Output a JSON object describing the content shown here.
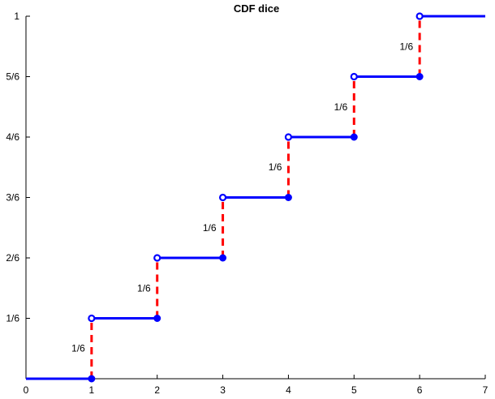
{
  "chart_data": {
    "type": "line",
    "title": "CDF dice",
    "xlabel": "",
    "ylabel": "",
    "xlim": [
      0,
      7
    ],
    "ylim": [
      0,
      1
    ],
    "x_ticks": [
      "0",
      "1",
      "2",
      "3",
      "4",
      "5",
      "6",
      "7"
    ],
    "y_ticks": [
      "1/6",
      "2/6",
      "3/6",
      "4/6",
      "5/6",
      "1"
    ],
    "grid": false,
    "steps": [
      {
        "x_start": 0,
        "x_end": 1,
        "y": 0
      },
      {
        "x_start": 1,
        "x_end": 2,
        "y": 0.16667
      },
      {
        "x_start": 2,
        "x_end": 3,
        "y": 0.33333
      },
      {
        "x_start": 3,
        "x_end": 4,
        "y": 0.5
      },
      {
        "x_start": 4,
        "x_end": 5,
        "y": 0.66667
      },
      {
        "x_start": 5,
        "x_end": 6,
        "y": 0.83333
      },
      {
        "x_start": 6,
        "x_end": 7,
        "y": 1
      }
    ],
    "jumps": [
      {
        "x": 1,
        "from": 0,
        "to": 0.16667,
        "label": "1/6"
      },
      {
        "x": 2,
        "from": 0.16667,
        "to": 0.33333,
        "label": "1/6"
      },
      {
        "x": 3,
        "from": 0.33333,
        "to": 0.5,
        "label": "1/6"
      },
      {
        "x": 4,
        "from": 0.5,
        "to": 0.66667,
        "label": "1/6"
      },
      {
        "x": 5,
        "from": 0.66667,
        "to": 0.83333,
        "label": "1/6"
      },
      {
        "x": 6,
        "from": 0.83333,
        "to": 1,
        "label": "1/6"
      }
    ],
    "colors": {
      "steps": "#0000ff",
      "jumps": "#ff0000",
      "axis": "#000000"
    }
  }
}
